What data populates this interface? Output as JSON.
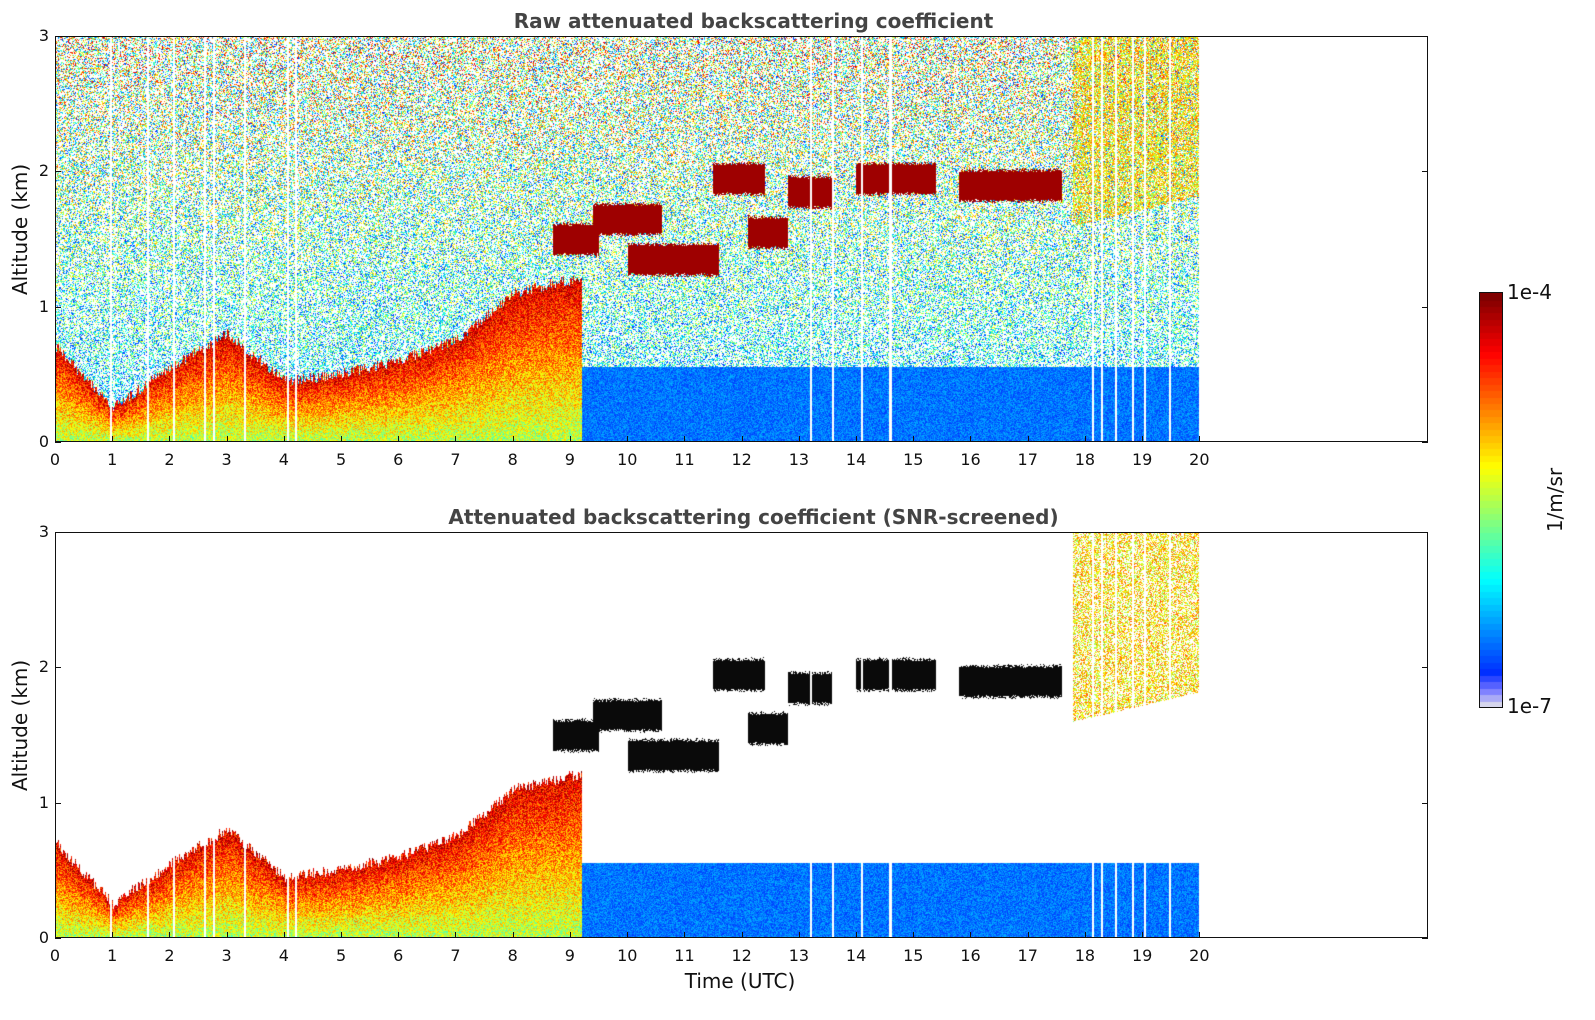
{
  "chart_data": [
    {
      "type": "heatmap",
      "title": "Raw attenuated backscattering coefficient",
      "xlabel": "",
      "ylabel": "Altitude (km)",
      "xlim": [
        0,
        24
      ],
      "ylim": [
        0,
        3
      ],
      "xticks": [
        "0",
        "1",
        "2",
        "3",
        "4",
        "5",
        "6",
        "7",
        "8",
        "9",
        "10",
        "11",
        "12",
        "13",
        "14",
        "15",
        "16",
        "17",
        "18",
        "19",
        "20"
      ],
      "yticks": [
        "0",
        "1",
        "2",
        "3"
      ],
      "data_end_time": 20,
      "features": {
        "boundary_layer_top_km": [
          [
            0,
            0.7
          ],
          [
            1,
            0.25
          ],
          [
            2,
            0.55
          ],
          [
            3,
            0.8
          ],
          [
            4,
            0.45
          ],
          [
            5,
            0.5
          ],
          [
            6,
            0.6
          ],
          [
            7,
            0.75
          ],
          [
            8,
            1.1
          ],
          [
            9,
            1.2
          ]
        ],
        "cloud_layers": [
          {
            "t_start": 8.7,
            "t_end": 9.5,
            "alt_km": 1.5
          },
          {
            "t_start": 9.4,
            "t_end": 10.6,
            "alt_km": 1.65
          },
          {
            "t_start": 10.0,
            "t_end": 11.6,
            "alt_km": 1.35
          },
          {
            "t_start": 11.5,
            "t_end": 12.4,
            "alt_km": 1.95
          },
          {
            "t_start": 12.1,
            "t_end": 12.8,
            "alt_km": 1.55
          },
          {
            "t_start": 12.8,
            "t_end": 13.6,
            "alt_km": 1.85
          },
          {
            "t_start": 14.0,
            "t_end": 15.4,
            "alt_km": 1.95
          },
          {
            "t_start": 15.8,
            "t_end": 17.6,
            "alt_km": 1.9
          }
        ]
      }
    },
    {
      "type": "heatmap",
      "title": "Attenuated backscattering coefficient (SNR-screened)",
      "xlabel": "Time (UTC)",
      "ylabel": "Altitude (km)",
      "xlim": [
        0,
        24
      ],
      "ylim": [
        0,
        3
      ],
      "xticks": [
        "0",
        "1",
        "2",
        "3",
        "4",
        "5",
        "6",
        "7",
        "8",
        "9",
        "10",
        "11",
        "12",
        "13",
        "14",
        "15",
        "16",
        "17",
        "18",
        "19",
        "20"
      ],
      "yticks": [
        "0",
        "1",
        "2",
        "3"
      ],
      "data_end_time": 20
    }
  ],
  "colorbar": {
    "label": "1/m/sr",
    "max_label": "1e-4",
    "min_label": "1e-7",
    "colormap": "jet",
    "scale": "log",
    "range": [
      1e-07,
      0.0001
    ]
  }
}
